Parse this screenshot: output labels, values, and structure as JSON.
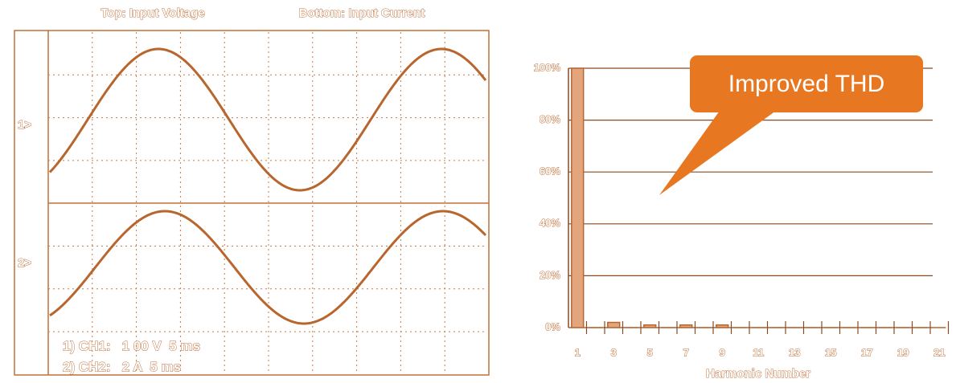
{
  "scope": {
    "title_top": "Top: Input Voltage",
    "title_bottom": "Bottom: Input Current",
    "marker_1": "1>",
    "marker_2": "2>",
    "ch1": "1) CH1:   1 00 V  5 ms",
    "ch2": "2) CH2:   2 A  5 ms"
  },
  "chart_data": {
    "type": "bar",
    "categories": [
      "1",
      null,
      "3",
      null,
      "5",
      null,
      "7",
      null,
      "9",
      null,
      "11",
      null,
      "13",
      null,
      "15",
      null,
      "17",
      null,
      "19",
      null,
      "21"
    ],
    "values": [
      100,
      0,
      2,
      0,
      1,
      0,
      1,
      0,
      1,
      0,
      0,
      0,
      0,
      0,
      0,
      0,
      0,
      0,
      0,
      0,
      0
    ],
    "color": "#e3a67c",
    "grid": true,
    "ylim": [
      0,
      100
    ],
    "yticks": [
      {
        "value": 0,
        "label": "0%"
      },
      {
        "value": 20,
        "label": "20%"
      },
      {
        "value": 40,
        "label": "40%"
      },
      {
        "value": 60,
        "label": "60%"
      },
      {
        "value": 80,
        "label": "80%"
      },
      {
        "value": 100,
        "label": "100%"
      }
    ],
    "xlabel": "Harmonic Number",
    "annotation": "Improved THD"
  }
}
